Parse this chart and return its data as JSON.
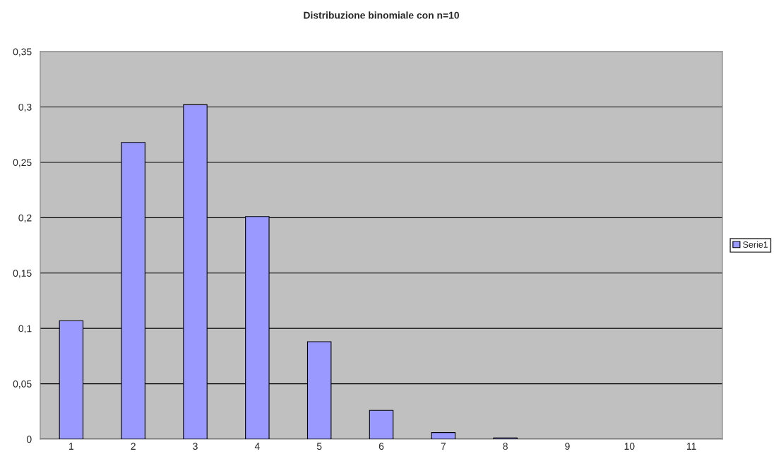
{
  "chart_data": {
    "type": "bar",
    "title": "Distribuzione binomiale con n=10",
    "categories": [
      "1",
      "2",
      "3",
      "4",
      "5",
      "6",
      "7",
      "8",
      "9",
      "10",
      "11"
    ],
    "series": [
      {
        "name": "Serie1",
        "color": "#9999ff",
        "values": [
          0.107,
          0.268,
          0.302,
          0.201,
          0.088,
          0.026,
          0.006,
          0.001,
          0,
          0,
          0
        ]
      }
    ],
    "ylim": [
      0,
      0.35
    ],
    "yticks": [
      {
        "value": 0,
        "label": "0"
      },
      {
        "value": 0.05,
        "label": "0,05"
      },
      {
        "value": 0.1,
        "label": "0,1"
      },
      {
        "value": 0.15,
        "label": "0,15"
      },
      {
        "value": 0.2,
        "label": "0,2"
      },
      {
        "value": 0.25,
        "label": "0,25"
      },
      {
        "value": 0.3,
        "label": "0,3"
      },
      {
        "value": 0.35,
        "label": "0,35"
      }
    ],
    "grid": "y",
    "legend": "right"
  }
}
